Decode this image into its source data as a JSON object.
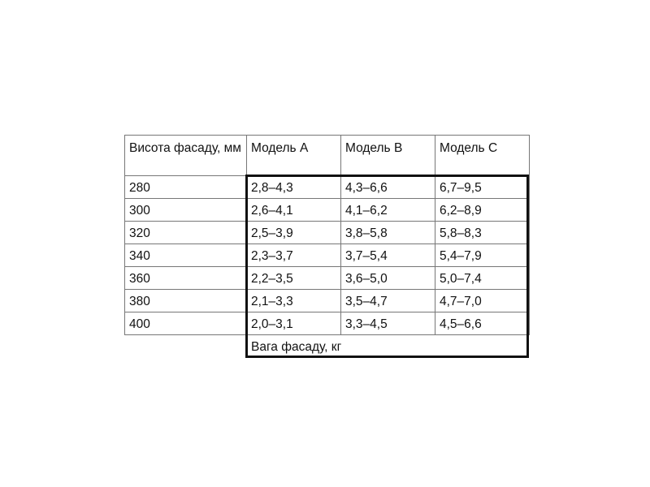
{
  "table": {
    "headers": [
      "Висота фасаду, мм",
      "Модель A",
      "Модель B",
      "Модель C"
    ],
    "rows": [
      [
        "280",
        "2,8–4,3",
        "4,3–6,6",
        "6,7–9,5"
      ],
      [
        "300",
        "2,6–4,1",
        "4,1–6,2",
        "6,2–8,9"
      ],
      [
        "320",
        "2,5–3,9",
        "3,8–5,8",
        "5,8–8,3"
      ],
      [
        "340",
        "2,3–3,7",
        "3,7–5,4",
        "5,4–7,9"
      ],
      [
        "360",
        "2,2–3,5",
        "3,6–5,0",
        "5,0–7,4"
      ],
      [
        "380",
        "2,1–3,3",
        "3,5–4,7",
        "4,7–7,0"
      ],
      [
        "400",
        "2,0–3,1",
        "3,3–4,5",
        "4,5–6,6"
      ]
    ],
    "footer": "Вага фасаду, кг"
  }
}
